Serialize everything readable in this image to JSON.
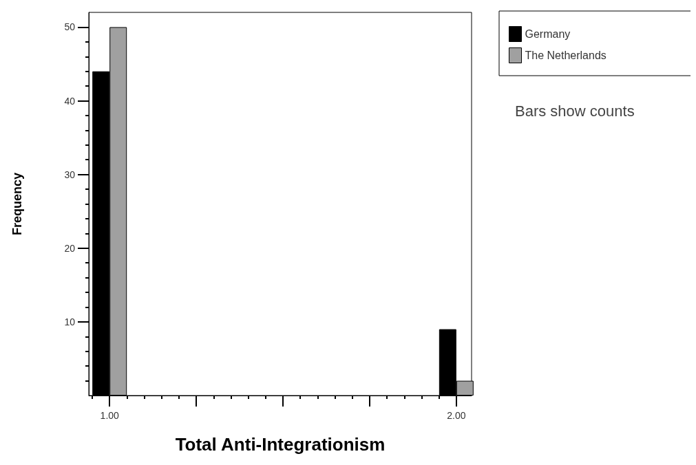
{
  "chart_data": {
    "type": "bar",
    "xlabel": "Total Anti-Integrationism",
    "ylabel": "Frequency",
    "x": [
      1,
      2
    ],
    "xlim": [
      0.94,
      2.044
    ],
    "xticks": [
      {
        "value": 1,
        "label": "1.00"
      },
      {
        "value": 1.25,
        "label": null
      },
      {
        "value": 1.5,
        "label": null
      },
      {
        "value": 1.75,
        "label": null
      },
      {
        "value": 2,
        "label": "2.00"
      }
    ],
    "ylim": [
      0,
      52
    ],
    "yticks": [
      10,
      20,
      30,
      40,
      50
    ],
    "series": [
      {
        "name": "Germany",
        "color": "#000000",
        "values": [
          44,
          9
        ]
      },
      {
        "name": "The Netherlands",
        "color": "#a0a0a0",
        "values": [
          50,
          2
        ]
      }
    ],
    "legend": "top right",
    "annotations": [
      "Bars show counts"
    ],
    "grid": false
  }
}
